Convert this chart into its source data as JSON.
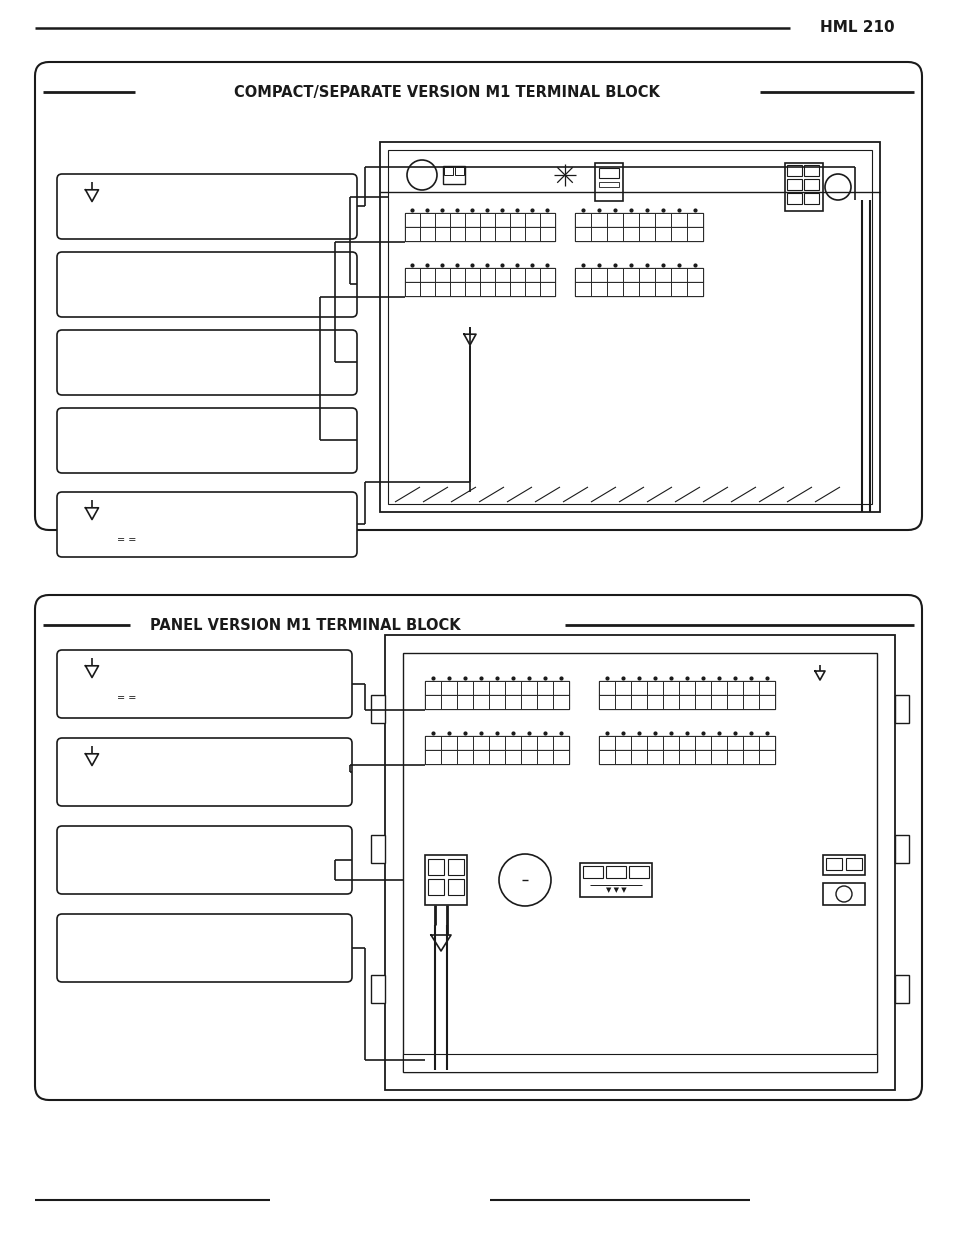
{
  "bg_color": "#ffffff",
  "line_color": "#1a1a1a",
  "title_color": "#1a1a1a",
  "header_text": "HML 210",
  "diagram1_title": "COMPACT/SEPARATE VERSION M1 TERMINAL BLOCK",
  "diagram2_title": "PANEL VERSION M1 TERMINAL BLOCK"
}
